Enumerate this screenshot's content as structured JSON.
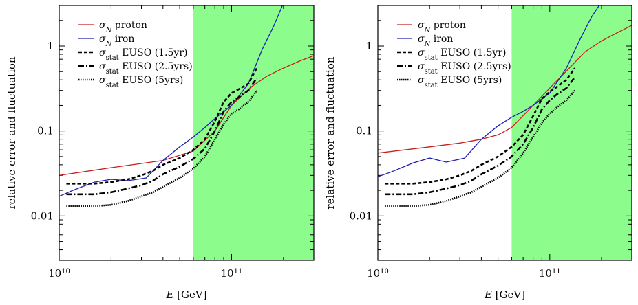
{
  "chart_data": [
    {
      "type": "line",
      "xlabel": "E [GeV]",
      "ylabel": "relative error and fluctuation",
      "xscale": "log",
      "yscale": "log",
      "xlim": [
        10000000000.0,
        300000000000.0
      ],
      "ylim": [
        0.003,
        3
      ],
      "x_ticks": [
        {
          "value": 10000000000.0,
          "label": "10^10"
        },
        {
          "value": 100000000000.0,
          "label": "10^11"
        }
      ],
      "y_ticks": [
        {
          "value": 0.01,
          "label": "0.01"
        },
        {
          "value": 0.1,
          "label": "0.1"
        },
        {
          "value": 1,
          "label": "1"
        }
      ],
      "shaded_region": {
        "x_from": 60000000000.0,
        "x_to": 300000000000.0,
        "color": "#8cfc8c"
      },
      "legend_position": "top-left",
      "series": [
        {
          "name": "σN proton",
          "color": "#c81e1e",
          "style": "solid",
          "x": [
            10000000000.0,
            20000000000.0,
            40000000000.0,
            60000000000.0,
            80000000000.0,
            100000000000.0,
            130000000000.0,
            160000000000.0,
            200000000000.0,
            250000000000.0,
            300000000000.0
          ],
          "y": [
            0.03,
            0.037,
            0.045,
            0.058,
            0.1,
            0.2,
            0.33,
            0.44,
            0.55,
            0.67,
            0.77
          ]
        },
        {
          "name": "σN iron",
          "color": "#1e1eb4",
          "style": "solid",
          "x": [
            10000000000.0,
            12000000000.0,
            16000000000.0,
            20000000000.0,
            25000000000.0,
            32000000000.0,
            40000000000.0,
            50000000000.0,
            60000000000.0,
            70000000000.0,
            80000000000.0,
            100000000000.0,
            125000000000.0,
            150000000000.0,
            175000000000.0,
            200000000000.0
          ],
          "y": [
            0.017,
            0.02,
            0.025,
            0.027,
            0.026,
            0.028,
            0.045,
            0.065,
            0.085,
            0.11,
            0.14,
            0.2,
            0.36,
            0.9,
            1.7,
            3.2
          ]
        },
        {
          "name": "σstat EUSO (1.5yr)",
          "color": "#000000",
          "style": "dashed",
          "x": [
            11000000000.0,
            16000000000.0,
            20000000000.0,
            25000000000.0,
            30000000000.0,
            35000000000.0,
            40000000000.0,
            50000000000.0,
            60000000000.0,
            70000000000.0,
            80000000000.0,
            90000000000.0,
            100000000000.0,
            110000000000.0,
            125000000000.0,
            140000000000.0
          ],
          "y": [
            0.024,
            0.024,
            0.025,
            0.027,
            0.03,
            0.034,
            0.04,
            0.048,
            0.06,
            0.08,
            0.13,
            0.22,
            0.28,
            0.31,
            0.36,
            0.55
          ]
        },
        {
          "name": "σstat EUSO (2.5yrs)",
          "color": "#000000",
          "style": "dashdot",
          "x": [
            11000000000.0,
            16000000000.0,
            20000000000.0,
            25000000000.0,
            30000000000.0,
            35000000000.0,
            40000000000.0,
            50000000000.0,
            60000000000.0,
            70000000000.0,
            80000000000.0,
            90000000000.0,
            100000000000.0,
            110000000000.0,
            125000000000.0,
            140000000000.0
          ],
          "y": [
            0.018,
            0.018,
            0.019,
            0.021,
            0.023,
            0.026,
            0.031,
            0.038,
            0.047,
            0.062,
            0.1,
            0.17,
            0.22,
            0.25,
            0.3,
            0.42
          ]
        },
        {
          "name": "σstat EUSO (5yrs)",
          "color": "#000000",
          "style": "dotted",
          "x": [
            11000000000.0,
            16000000000.0,
            20000000000.0,
            25000000000.0,
            30000000000.0,
            35000000000.0,
            40000000000.0,
            50000000000.0,
            60000000000.0,
            70000000000.0,
            80000000000.0,
            90000000000.0,
            100000000000.0,
            110000000000.0,
            125000000000.0,
            140000000000.0
          ],
          "y": [
            0.013,
            0.013,
            0.0135,
            0.015,
            0.017,
            0.019,
            0.022,
            0.028,
            0.036,
            0.05,
            0.08,
            0.12,
            0.16,
            0.18,
            0.22,
            0.3
          ]
        }
      ]
    },
    {
      "type": "line",
      "xlabel": "E [GeV]",
      "ylabel": "relative error and fluctuation",
      "xscale": "log",
      "yscale": "log",
      "xlim": [
        10000000000.0,
        300000000000.0
      ],
      "ylim": [
        0.003,
        3
      ],
      "x_ticks": [
        {
          "value": 10000000000.0,
          "label": "10^10"
        },
        {
          "value": 100000000000.0,
          "label": "10^11"
        }
      ],
      "y_ticks": [
        {
          "value": 0.01,
          "label": "0.01"
        },
        {
          "value": 0.1,
          "label": "0.1"
        },
        {
          "value": 1,
          "label": "1"
        }
      ],
      "shaded_region": {
        "x_from": 60000000000.0,
        "x_to": 300000000000.0,
        "color": "#8cfc8c"
      },
      "legend_position": "top-left",
      "series": [
        {
          "name": "σN proton",
          "color": "#c81e1e",
          "style": "solid",
          "x": [
            10000000000.0,
            20000000000.0,
            30000000000.0,
            40000000000.0,
            50000000000.0,
            60000000000.0,
            80000000000.0,
            100000000000.0,
            130000000000.0,
            160000000000.0,
            200000000000.0,
            250000000000.0,
            300000000000.0
          ],
          "y": [
            0.055,
            0.065,
            0.072,
            0.08,
            0.09,
            0.11,
            0.2,
            0.32,
            0.55,
            0.85,
            1.15,
            1.45,
            1.75
          ]
        },
        {
          "name": "σN iron",
          "color": "#1e1eb4",
          "style": "solid",
          "x": [
            10000000000.0,
            12000000000.0,
            16000000000.0,
            20000000000.0,
            25000000000.0,
            32000000000.0,
            40000000000.0,
            50000000000.0,
            60000000000.0,
            70000000000.0,
            80000000000.0,
            100000000000.0,
            125000000000.0,
            150000000000.0,
            175000000000.0,
            200000000000.0
          ],
          "y": [
            0.029,
            0.033,
            0.042,
            0.048,
            0.043,
            0.048,
            0.08,
            0.115,
            0.145,
            0.17,
            0.2,
            0.28,
            0.55,
            1.2,
            2.2,
            3.3
          ]
        },
        {
          "name": "σstat EUSO (1.5yr)",
          "color": "#000000",
          "style": "dashed",
          "x": [
            11000000000.0,
            16000000000.0,
            20000000000.0,
            25000000000.0,
            30000000000.0,
            35000000000.0,
            40000000000.0,
            50000000000.0,
            60000000000.0,
            70000000000.0,
            80000000000.0,
            90000000000.0,
            100000000000.0,
            110000000000.0,
            125000000000.0,
            140000000000.0
          ],
          "y": [
            0.024,
            0.024,
            0.025,
            0.027,
            0.03,
            0.034,
            0.04,
            0.05,
            0.065,
            0.09,
            0.15,
            0.24,
            0.29,
            0.33,
            0.4,
            0.55
          ]
        },
        {
          "name": "σstat EUSO (2.5yrs)",
          "color": "#000000",
          "style": "dashdot",
          "x": [
            11000000000.0,
            16000000000.0,
            20000000000.0,
            25000000000.0,
            30000000000.0,
            35000000000.0,
            40000000000.0,
            50000000000.0,
            60000000000.0,
            70000000000.0,
            80000000000.0,
            90000000000.0,
            100000000000.0,
            110000000000.0,
            125000000000.0,
            140000000000.0
          ],
          "y": [
            0.018,
            0.018,
            0.019,
            0.021,
            0.023,
            0.026,
            0.031,
            0.039,
            0.05,
            0.07,
            0.11,
            0.18,
            0.23,
            0.27,
            0.32,
            0.43
          ]
        },
        {
          "name": "σstat EUSO (5yrs)",
          "color": "#000000",
          "style": "dotted",
          "x": [
            11000000000.0,
            16000000000.0,
            20000000000.0,
            25000000000.0,
            30000000000.0,
            35000000000.0,
            40000000000.0,
            50000000000.0,
            60000000000.0,
            70000000000.0,
            80000000000.0,
            90000000000.0,
            100000000000.0,
            110000000000.0,
            125000000000.0,
            140000000000.0
          ],
          "y": [
            0.013,
            0.013,
            0.0135,
            0.015,
            0.017,
            0.019,
            0.022,
            0.028,
            0.037,
            0.055,
            0.085,
            0.125,
            0.16,
            0.19,
            0.23,
            0.3
          ]
        }
      ]
    }
  ]
}
